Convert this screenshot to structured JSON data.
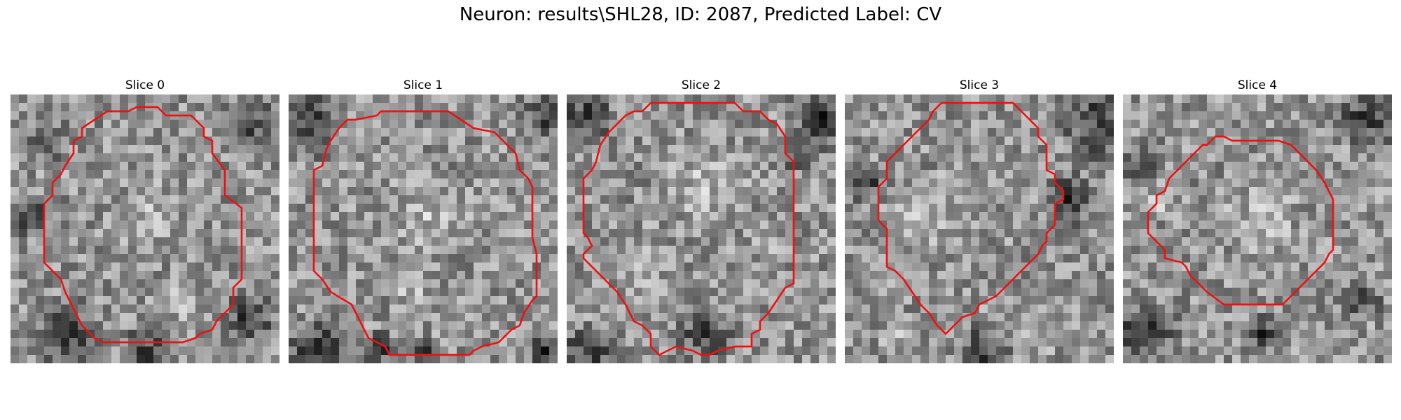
{
  "figure": {
    "title": "Neuron: results\\SHL28, ID: 2087, Predicted Label: CV"
  },
  "slices": [
    {
      "title": "Slice 0"
    },
    {
      "title": "Slice 1"
    },
    {
      "title": "Slice 2"
    },
    {
      "title": "Slice 3"
    },
    {
      "title": "Slice 4"
    }
  ],
  "colors": {
    "contour": "#ee1111",
    "background": "#ffffff"
  }
}
